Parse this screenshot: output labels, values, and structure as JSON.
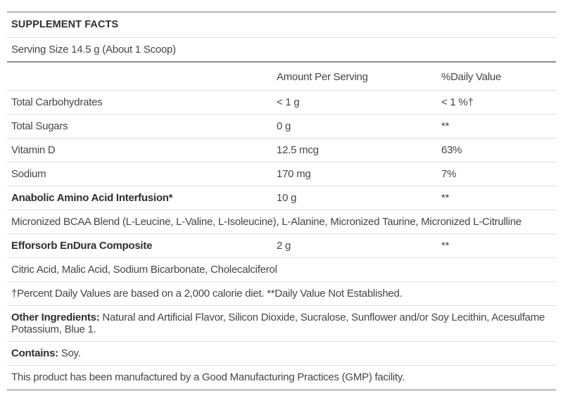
{
  "table": {
    "title": "SUPPLEMENT FACTS",
    "serving_size": "Serving Size 14.5 g (About 1 Scoop)",
    "columns": {
      "blank": "",
      "amount": "Amount Per Serving",
      "dv": "%Daily Value"
    },
    "rows": [
      {
        "type": "nutrient",
        "label": "Total Carbohydrates",
        "amount": "< 1 g",
        "dv": "< 1 %†",
        "bold": false
      },
      {
        "type": "nutrient",
        "label": "Total Sugars",
        "amount": "0 g",
        "dv": "**",
        "bold": false
      },
      {
        "type": "nutrient",
        "label": "Vitamin D",
        "amount": "12.5 mcg",
        "dv": "63%",
        "bold": false
      },
      {
        "type": "nutrient",
        "label": "Sodium",
        "amount": "170 mg",
        "dv": "7%",
        "bold": false
      },
      {
        "type": "nutrient",
        "label": "Anabolic Amino Acid Interfusion*",
        "amount": "10 g",
        "dv": "**",
        "bold": true
      },
      {
        "type": "note",
        "prefix": "",
        "text": "Micronized BCAA Blend (L-Leucine, L-Valine, L-Isoleucine), L-Alanine, Micronized Taurine, Micronized L-Citrulline"
      },
      {
        "type": "nutrient",
        "label": "Efforsorb EnDura Composite",
        "amount": "2 g",
        "dv": "**",
        "bold": true
      },
      {
        "type": "note",
        "prefix": "",
        "text": "Citric Acid, Malic Acid, Sodium Bicarbonate, Cholecalciferol"
      },
      {
        "type": "note",
        "prefix": "",
        "text": "†Percent Daily Values are based on a 2,000 calorie diet. **Daily Value Not Established."
      },
      {
        "type": "note",
        "prefix": "Other Ingredients:",
        "text": " Natural and Artificial Flavor, Silicon Dioxide, Sucralose, Sunflower and/or Soy Lecithin, Acesulfame Potassium, Blue 1."
      },
      {
        "type": "note",
        "prefix": "Contains:",
        "text": " Soy."
      },
      {
        "type": "note",
        "prefix": "",
        "text": "This product has been manufactured by a Good Manufacturing Practices (GMP) facility."
      }
    ],
    "colors": {
      "text": "#464646",
      "text_dark": "#303030",
      "separator": "#dddddd",
      "header_rule": "#8f8f8f",
      "top_rule": "#b4b4b4",
      "bottom_rule": "#c8c8c8",
      "background": "#ffffff"
    }
  }
}
